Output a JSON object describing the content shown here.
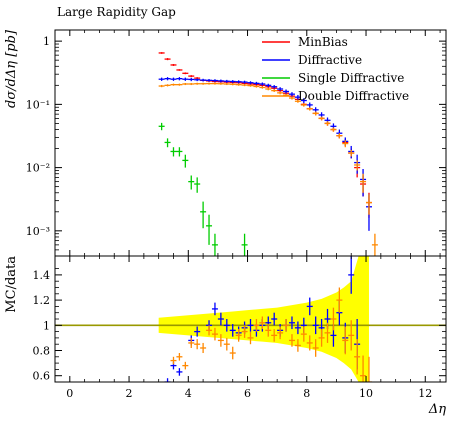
{
  "chart_data": {
    "type": "scatter",
    "title": "Large Rapidity Gap",
    "xlabel": "Δη",
    "ylabel": "dσ/dΔη [pb]",
    "ratio_ylabel": "MC/data",
    "xlim": [
      -0.5,
      12.7
    ],
    "ylim": [
      0.0004,
      1.5
    ],
    "yscale": "log",
    "ratio_ylim": [
      0.55,
      1.55
    ],
    "x_ticks": [
      0,
      2,
      4,
      6,
      8,
      10,
      12
    ],
    "x_tick_labels": [
      "0",
      "2",
      "4",
      "6",
      "8",
      "10",
      "12"
    ],
    "y_ticks": [
      1,
      0.1,
      0.01,
      0.001
    ],
    "y_tick_labels": [
      "1",
      "10⁻¹",
      "10⁻²",
      "10⁻³"
    ],
    "ratio_y_ticks": [
      0.6,
      0.8,
      1.0,
      1.2,
      1.4
    ],
    "ratio_y_tick_labels": [
      "0.6",
      "0.8",
      "1",
      "1.2",
      "1.4"
    ],
    "legend_position": "top-right",
    "series": [
      {
        "name": "MinBias",
        "color": "#ff0000",
        "x": [
          3.1,
          3.3,
          3.5,
          3.7,
          3.9,
          4.1,
          4.3,
          4.5,
          4.7,
          4.9,
          5.1,
          5.3,
          5.5,
          5.7,
          5.9,
          6.1,
          6.3,
          6.5,
          6.7,
          6.9,
          7.1,
          7.3,
          7.5,
          7.7,
          7.9,
          8.1,
          8.3,
          8.5,
          8.7,
          8.9,
          9.1,
          9.3,
          9.5,
          9.7,
          9.9,
          10.1
        ],
        "y": [
          0.65,
          0.52,
          0.42,
          0.35,
          0.31,
          0.28,
          0.26,
          0.24,
          0.235,
          0.23,
          0.228,
          0.225,
          0.222,
          0.22,
          0.215,
          0.21,
          0.205,
          0.2,
          0.19,
          0.18,
          0.165,
          0.15,
          0.135,
          0.12,
          0.1,
          0.085,
          0.072,
          0.06,
          0.05,
          0.04,
          0.032,
          0.025,
          0.017,
          0.01,
          0.0055,
          0.0028
        ],
        "yerr": [
          0.02,
          0.02,
          0.015,
          0.01,
          0.01,
          0.01,
          0.01,
          0.008,
          0.008,
          0.008,
          0.008,
          0.008,
          0.008,
          0.008,
          0.008,
          0.008,
          0.008,
          0.008,
          0.008,
          0.008,
          0.008,
          0.008,
          0.007,
          0.007,
          0.006,
          0.005,
          0.005,
          0.004,
          0.004,
          0.003,
          0.003,
          0.003,
          0.003,
          0.003,
          0.002,
          0.0012
        ]
      },
      {
        "name": "Diffractive",
        "color": "#0000ff",
        "x": [
          3.1,
          3.3,
          3.5,
          3.7,
          3.9,
          4.1,
          4.3,
          4.5,
          4.7,
          4.9,
          5.1,
          5.3,
          5.5,
          5.7,
          5.9,
          6.1,
          6.3,
          6.5,
          6.7,
          6.9,
          7.1,
          7.3,
          7.5,
          7.7,
          7.9,
          8.1,
          8.3,
          8.5,
          8.7,
          8.9,
          9.1,
          9.3,
          9.5,
          9.7,
          9.9,
          10.1
        ],
        "y": [
          0.25,
          0.255,
          0.25,
          0.255,
          0.25,
          0.248,
          0.245,
          0.242,
          0.24,
          0.238,
          0.235,
          0.232,
          0.23,
          0.228,
          0.225,
          0.22,
          0.215,
          0.21,
          0.2,
          0.19,
          0.175,
          0.16,
          0.145,
          0.13,
          0.115,
          0.098,
          0.082,
          0.068,
          0.056,
          0.045,
          0.035,
          0.026,
          0.018,
          0.012,
          0.0065,
          0.0024
        ],
        "yerr": [
          0.015,
          0.015,
          0.015,
          0.015,
          0.015,
          0.015,
          0.012,
          0.012,
          0.012,
          0.012,
          0.012,
          0.012,
          0.012,
          0.012,
          0.012,
          0.012,
          0.012,
          0.012,
          0.012,
          0.012,
          0.012,
          0.012,
          0.011,
          0.011,
          0.01,
          0.009,
          0.008,
          0.007,
          0.006,
          0.005,
          0.005,
          0.004,
          0.004,
          0.004,
          0.003,
          0.0014
        ]
      },
      {
        "name": "Single Diffractive",
        "color": "#00cc00",
        "x": [
          3.1,
          3.3,
          3.5,
          3.7,
          3.9,
          4.1,
          4.3,
          4.5,
          4.7,
          4.9,
          5.9
        ],
        "y": [
          0.045,
          0.025,
          0.018,
          0.018,
          0.013,
          0.006,
          0.0055,
          0.002,
          0.0012,
          0.0006,
          0.0006
        ],
        "yerr": [
          0.006,
          0.004,
          0.003,
          0.003,
          0.003,
          0.0015,
          0.0015,
          0.0009,
          0.0006,
          0.0003,
          0.0003
        ]
      },
      {
        "name": "Double Diffractive",
        "color": "#ff8800",
        "x": [
          3.1,
          3.3,
          3.5,
          3.7,
          3.9,
          4.1,
          4.3,
          4.5,
          4.7,
          4.9,
          5.1,
          5.3,
          5.5,
          5.7,
          5.9,
          6.1,
          6.3,
          6.5,
          6.7,
          6.9,
          7.1,
          7.3,
          7.5,
          7.7,
          7.9,
          8.1,
          8.3,
          8.5,
          8.7,
          8.9,
          9.1,
          9.3,
          9.5,
          9.7,
          9.9,
          10.1,
          10.3
        ],
        "y": [
          0.195,
          0.2,
          0.205,
          0.205,
          0.21,
          0.21,
          0.212,
          0.212,
          0.213,
          0.213,
          0.212,
          0.21,
          0.208,
          0.205,
          0.202,
          0.198,
          0.192,
          0.185,
          0.175,
          0.165,
          0.152,
          0.14,
          0.126,
          0.112,
          0.098,
          0.085,
          0.072,
          0.06,
          0.05,
          0.04,
          0.032,
          0.024,
          0.017,
          0.011,
          0.006,
          0.0028,
          0.0006
        ],
        "yerr": [
          0.008,
          0.008,
          0.008,
          0.008,
          0.008,
          0.008,
          0.008,
          0.008,
          0.008,
          0.008,
          0.008,
          0.008,
          0.008,
          0.008,
          0.008,
          0.008,
          0.008,
          0.008,
          0.008,
          0.008,
          0.008,
          0.007,
          0.007,
          0.006,
          0.006,
          0.005,
          0.005,
          0.004,
          0.004,
          0.003,
          0.003,
          0.003,
          0.002,
          0.002,
          0.002,
          0.001,
          0.0003
        ]
      }
    ],
    "ratio_band": {
      "color": "#ffff00",
      "x": [
        3.0,
        3.5,
        4.0,
        4.5,
        5.0,
        5.5,
        6.0,
        6.5,
        7.0,
        7.5,
        8.0,
        8.5,
        9.0,
        9.25,
        9.5,
        9.75,
        10.0,
        10.1
      ],
      "low": [
        0.94,
        0.93,
        0.92,
        0.91,
        0.9,
        0.89,
        0.88,
        0.87,
        0.86,
        0.84,
        0.82,
        0.79,
        0.74,
        0.7,
        0.65,
        0.55,
        0.55,
        0.55
      ],
      "high": [
        1.06,
        1.07,
        1.08,
        1.09,
        1.1,
        1.11,
        1.12,
        1.13,
        1.14,
        1.16,
        1.18,
        1.21,
        1.26,
        1.3,
        1.35,
        1.55,
        1.55,
        1.55
      ]
    },
    "ratio_reference": {
      "value": 1.0,
      "color": "#999900"
    },
    "ratio_series": [
      {
        "name": "Diffractive",
        "color": "#0000ff",
        "x": [
          3.3,
          3.5,
          3.7,
          4.1,
          4.3,
          4.7,
          4.9,
          5.1,
          5.3,
          5.5,
          5.7,
          5.9,
          6.1,
          6.3,
          6.5,
          6.7,
          6.9,
          7.1,
          7.3,
          7.5,
          7.7,
          7.9,
          8.1,
          8.3,
          8.5,
          8.7,
          8.9,
          9.1,
          9.3,
          9.5,
          9.7
        ],
        "y": [
          0.55,
          0.68,
          0.63,
          0.88,
          0.95,
          1.0,
          1.13,
          1.05,
          1.0,
          0.96,
          0.94,
          0.98,
          1.0,
          0.96,
          1.0,
          1.02,
          1.05,
          0.96,
          1.0,
          1.02,
          0.98,
          1.0,
          1.15,
          1.0,
          0.98,
          1.05,
          0.92,
          1.1,
          0.9,
          1.4,
          0.85
        ],
        "yerr": [
          0.03,
          0.03,
          0.03,
          0.04,
          0.04,
          0.04,
          0.05,
          0.05,
          0.05,
          0.05,
          0.05,
          0.05,
          0.05,
          0.05,
          0.05,
          0.05,
          0.05,
          0.05,
          0.05,
          0.05,
          0.05,
          0.06,
          0.07,
          0.07,
          0.07,
          0.08,
          0.09,
          0.1,
          0.12,
          0.15,
          0.2
        ]
      },
      {
        "name": "Double Diffractive",
        "color": "#ff8800",
        "x": [
          3.5,
          3.7,
          3.9,
          4.1,
          4.3,
          4.5,
          4.7,
          4.9,
          5.1,
          5.3,
          5.5,
          5.7,
          5.9,
          6.1,
          6.3,
          6.5,
          6.7,
          6.9,
          7.1,
          7.3,
          7.5,
          7.7,
          7.9,
          8.1,
          8.3,
          8.5,
          8.7,
          8.9,
          9.1,
          9.3,
          9.5,
          9.7,
          9.9,
          10.1
        ],
        "y": [
          0.72,
          0.75,
          0.68,
          0.86,
          0.85,
          0.82,
          0.96,
          0.93,
          0.88,
          0.85,
          0.78,
          0.92,
          0.95,
          0.9,
          1.0,
          1.02,
          0.96,
          0.92,
          0.94,
          1.0,
          0.88,
          0.84,
          0.93,
          0.86,
          0.82,
          0.9,
          0.94,
          1.05,
          1.2,
          0.88,
          0.92,
          0.75,
          0.6,
          0.55
        ],
        "yerr": [
          0.03,
          0.03,
          0.03,
          0.04,
          0.04,
          0.04,
          0.04,
          0.05,
          0.05,
          0.05,
          0.05,
          0.05,
          0.05,
          0.05,
          0.05,
          0.05,
          0.05,
          0.05,
          0.05,
          0.05,
          0.05,
          0.05,
          0.06,
          0.06,
          0.07,
          0.07,
          0.08,
          0.09,
          0.1,
          0.11,
          0.12,
          0.14,
          0.16,
          0.2
        ]
      }
    ]
  }
}
